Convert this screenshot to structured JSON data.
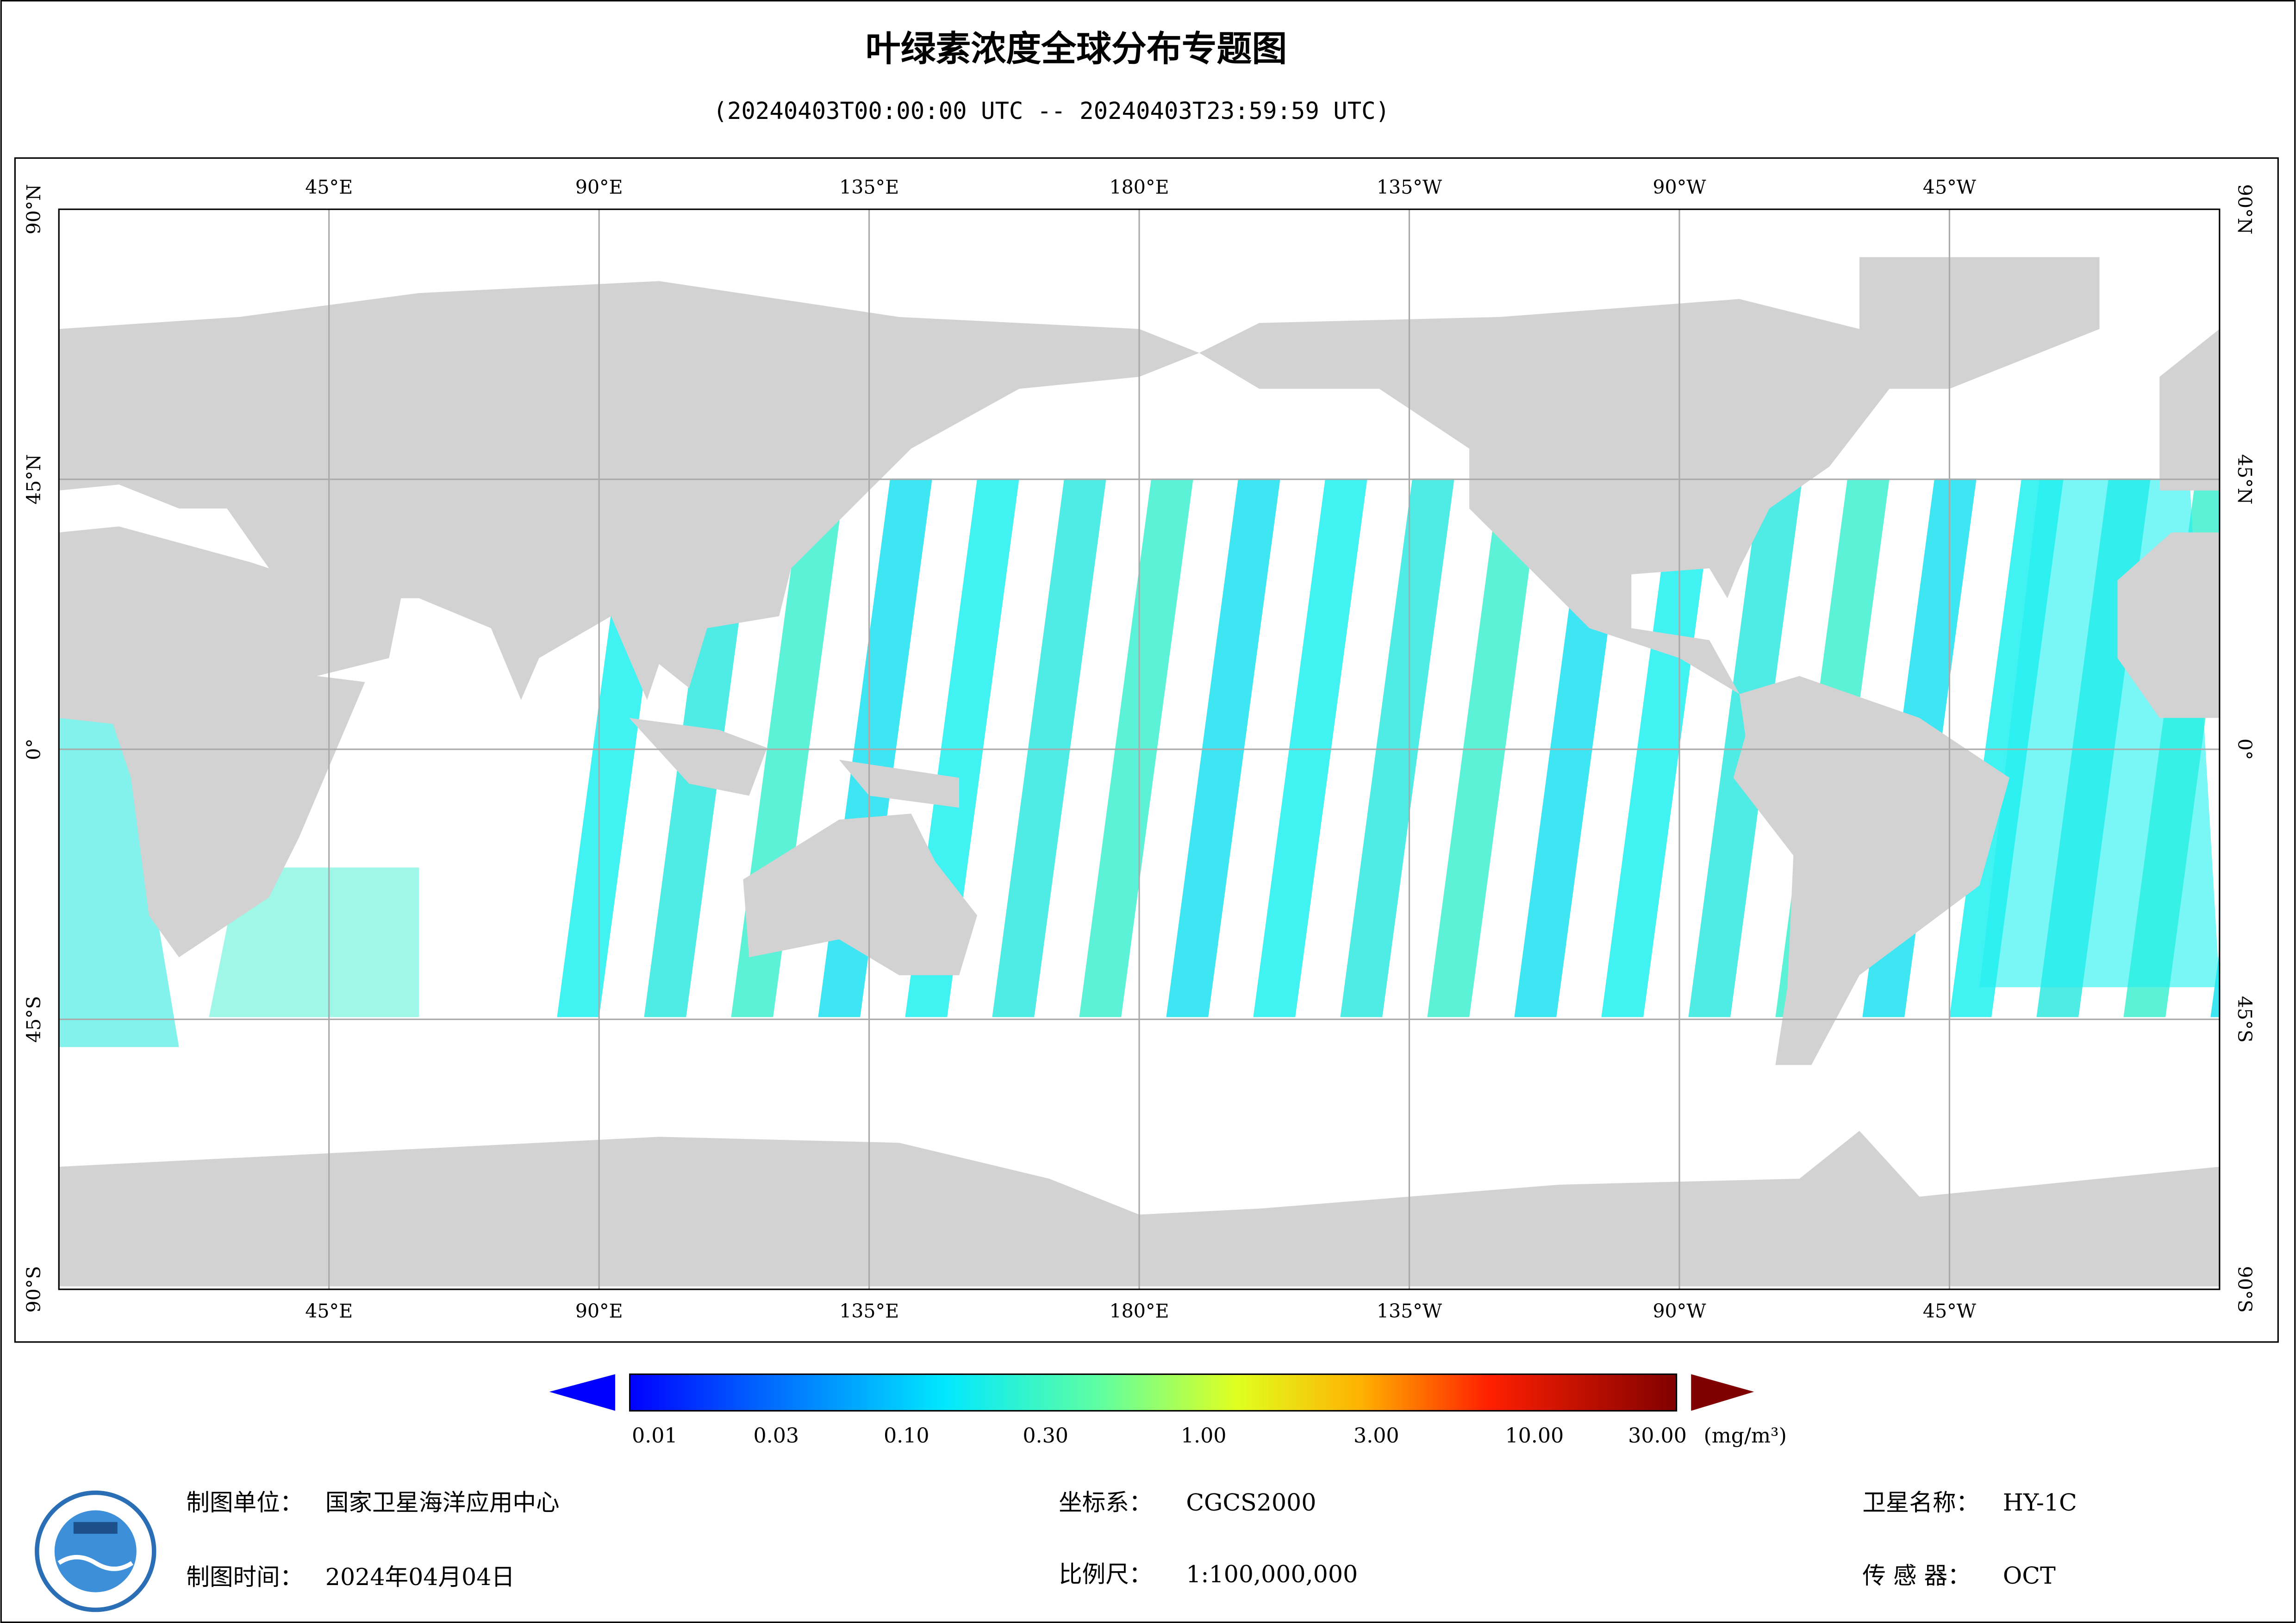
{
  "header": {
    "title": "叶绿素浓度全球分布专题图",
    "subtitle": "(20240403T00:00:00 UTC -- 20240403T23:59:59 UTC)"
  },
  "map": {
    "lon_labels": [
      "45°E",
      "90°E",
      "135°E",
      "180°E",
      "135°W",
      "90°W",
      "45°W"
    ],
    "lat_labels": [
      "90°N",
      "45°N",
      "0°",
      "45°S",
      "90°S"
    ]
  },
  "colorbar": {
    "labels": [
      "0.01",
      "0.03",
      "0.10",
      "0.30",
      "1.00",
      "3.00",
      "10.00",
      "30.00"
    ],
    "unit": "(mg/m³)"
  },
  "footer": {
    "producer": {
      "label": "制图单位：",
      "value": "国家卫星海洋应用中心"
    },
    "date": {
      "label": "制图时间：",
      "value": "2024年04月04日"
    },
    "crs": {
      "label": "坐标系：",
      "value": "CGCS2000"
    },
    "scale": {
      "label": "比例尺：",
      "value": "1:100,000,000"
    },
    "satellite": {
      "label": "卫星名称：",
      "value": "HY-1C"
    },
    "sensor": {
      "label": "传 感 器：",
      "value": "OCT"
    }
  }
}
